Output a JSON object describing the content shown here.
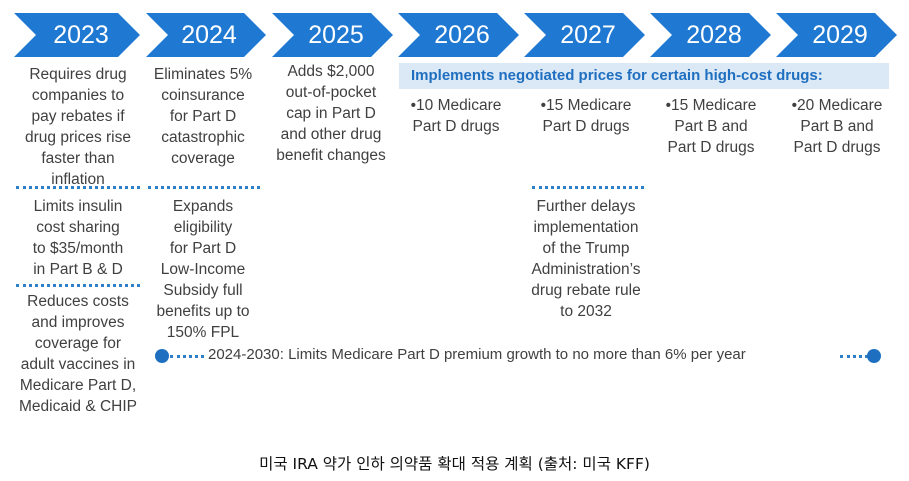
{
  "years": [
    "2023",
    "2024",
    "2025",
    "2026",
    "2027",
    "2028",
    "2029"
  ],
  "colors": {
    "chevron": "#1f78d1",
    "dots": "#2f7fc8",
    "banner_bg": "#dbe8f6",
    "banner_text": "#1f6fc0",
    "text": "#404040"
  },
  "col2023": {
    "item1": [
      "Requires drug",
      "companies to",
      "pay rebates if",
      "drug prices rise",
      "faster than",
      "inflation"
    ],
    "item2": [
      "Limits insulin",
      "cost sharing",
      "to $35/month",
      "in Part B & D"
    ],
    "item3": [
      "Reduces costs",
      "and improves",
      "coverage for",
      "adult vaccines in",
      "Medicare Part D,",
      "Medicaid & CHIP"
    ]
  },
  "col2024": {
    "item1": [
      "Eliminates 5%",
      "coinsurance",
      "for Part D",
      "catastrophic",
      "coverage"
    ],
    "item2": [
      "Expands",
      "eligibility",
      "for Part D",
      "Low-Income",
      "Subsidy full",
      "benefits up to",
      "150% FPL"
    ]
  },
  "col2025": {
    "item1": [
      "Adds $2,000",
      "out-of-pocket",
      "cap in Part D",
      "and other drug",
      "benefit changes"
    ]
  },
  "banner": "Implements negotiated prices for certain high-cost drugs:",
  "col2026": [
    "•10 Medicare",
    "Part D drugs"
  ],
  "col2027": {
    "item1": [
      "•15 Medicare",
      "Part D drugs"
    ],
    "item2": [
      "Further delays",
      "implementation",
      "of the Trump",
      "Administration’s",
      "drug rebate rule",
      "to 2032"
    ]
  },
  "col2028": [
    "•15 Medicare",
    "Part B and",
    "Part D drugs"
  ],
  "col2029": [
    "•20 Medicare",
    "Part B and",
    "Part D drugs"
  ],
  "range_text": "2024-2030:  Limits Medicare Part D premium growth to no more than 6% per year",
  "caption": "미국 IRA 약가 인하 의약품 확대 적용 계획 (출처: 미국 KFF)"
}
